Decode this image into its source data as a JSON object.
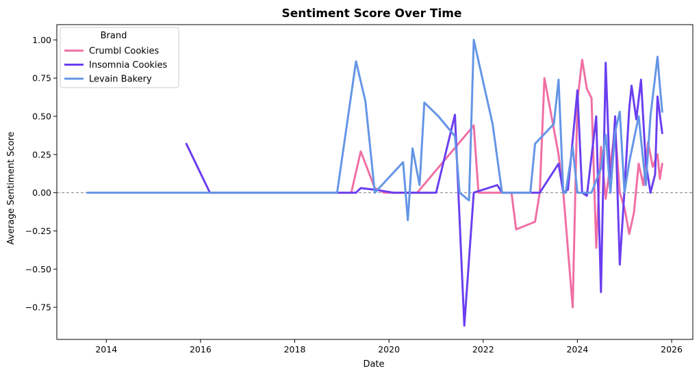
{
  "chart_data": {
    "type": "line",
    "title": "Sentiment Score Over Time",
    "xlabel": "Date",
    "ylabel": "Average Sentiment Score",
    "xlim": [
      2012.95,
      2026.45
    ],
    "ylim": [
      -0.96,
      1.1
    ],
    "x_ticks": [
      2014,
      2016,
      2018,
      2020,
      2022,
      2024,
      2026
    ],
    "x_tick_labels": [
      "2014",
      "2016",
      "2018",
      "2020",
      "2022",
      "2024",
      "2026"
    ],
    "y_ticks": [
      -0.75,
      -0.5,
      -0.25,
      0.0,
      0.25,
      0.5,
      0.75,
      1.0
    ],
    "y_tick_labels": [
      "−0.75",
      "−0.50",
      "−0.25",
      "0.00",
      "0.25",
      "0.50",
      "0.75",
      "1.00"
    ],
    "reference_line": {
      "y": 0,
      "style": "dashed",
      "color": "#808080"
    },
    "grid": false,
    "legend": {
      "title": "Brand",
      "placement": "top-left"
    },
    "series": [
      {
        "name": "Crumbl Cookies",
        "color": "#f06fa4",
        "points": [
          [
            2019.2,
            0.0
          ],
          [
            2019.4,
            0.27
          ],
          [
            2019.7,
            0.03
          ],
          [
            2019.9,
            0.0
          ],
          [
            2020.6,
            0.0
          ],
          [
            2021.8,
            0.44
          ],
          [
            2021.9,
            0.0
          ],
          [
            2022.6,
            0.0
          ],
          [
            2022.7,
            -0.24
          ],
          [
            2023.1,
            -0.19
          ],
          [
            2023.2,
            0.0
          ],
          [
            2023.3,
            0.75
          ],
          [
            2023.6,
            0.25
          ],
          [
            2023.7,
            0.0
          ],
          [
            2023.9,
            -0.75
          ],
          [
            2024.0,
            0.6
          ],
          [
            2024.1,
            0.87
          ],
          [
            2024.2,
            0.68
          ],
          [
            2024.3,
            0.62
          ],
          [
            2024.4,
            -0.36
          ],
          [
            2024.5,
            0.3
          ],
          [
            2024.6,
            -0.04
          ],
          [
            2024.8,
            0.42
          ],
          [
            2024.9,
            0.0
          ],
          [
            2025.0,
            -0.1
          ],
          [
            2025.1,
            -0.27
          ],
          [
            2025.2,
            -0.13
          ],
          [
            2025.3,
            0.19
          ],
          [
            2025.4,
            0.05
          ],
          [
            2025.5,
            0.33
          ],
          [
            2025.6,
            0.17
          ],
          [
            2025.7,
            0.25
          ],
          [
            2025.75,
            0.09
          ],
          [
            2025.8,
            0.19
          ]
        ]
      },
      {
        "name": "Insomnia Cookies",
        "color": "#6a3ef0",
        "points": [
          [
            2015.7,
            0.32
          ],
          [
            2016.2,
            0.0
          ],
          [
            2019.3,
            0.0
          ],
          [
            2019.4,
            0.03
          ],
          [
            2019.7,
            0.02
          ],
          [
            2020.1,
            0.0
          ],
          [
            2021.0,
            0.0
          ],
          [
            2021.4,
            0.51
          ],
          [
            2021.6,
            -0.87
          ],
          [
            2021.8,
            0.0
          ],
          [
            2022.3,
            0.05
          ],
          [
            2022.4,
            0.0
          ],
          [
            2023.2,
            0.0
          ],
          [
            2023.6,
            0.19
          ],
          [
            2023.7,
            0.0
          ],
          [
            2023.8,
            0.02
          ],
          [
            2024.0,
            0.67
          ],
          [
            2024.1,
            0.0
          ],
          [
            2024.2,
            -0.02
          ],
          [
            2024.4,
            0.5
          ],
          [
            2024.5,
            -0.65
          ],
          [
            2024.6,
            0.85
          ],
          [
            2024.7,
            0.0
          ],
          [
            2024.8,
            0.5
          ],
          [
            2024.9,
            -0.47
          ],
          [
            2025.0,
            0.02
          ],
          [
            2025.1,
            0.55
          ],
          [
            2025.15,
            0.7
          ],
          [
            2025.25,
            0.48
          ],
          [
            2025.35,
            0.74
          ],
          [
            2025.45,
            0.2
          ],
          [
            2025.55,
            0.0
          ],
          [
            2025.65,
            0.12
          ],
          [
            2025.7,
            0.63
          ],
          [
            2025.8,
            0.39
          ]
        ]
      },
      {
        "name": "Levain Bakery",
        "color": "#6495e6",
        "points": [
          [
            2013.6,
            0.0
          ],
          [
            2018.9,
            0.0
          ],
          [
            2019.3,
            0.86
          ],
          [
            2019.5,
            0.6
          ],
          [
            2019.7,
            0.0
          ],
          [
            2020.3,
            0.2
          ],
          [
            2020.4,
            -0.18
          ],
          [
            2020.5,
            0.29
          ],
          [
            2020.65,
            0.05
          ],
          [
            2020.75,
            0.59
          ],
          [
            2021.05,
            0.5
          ],
          [
            2021.4,
            0.37
          ],
          [
            2021.5,
            0.0
          ],
          [
            2021.7,
            -0.05
          ],
          [
            2021.8,
            1.0
          ],
          [
            2022.2,
            0.45
          ],
          [
            2022.4,
            0.0
          ],
          [
            2023.0,
            0.0
          ],
          [
            2023.1,
            0.32
          ],
          [
            2023.5,
            0.45
          ],
          [
            2023.6,
            0.74
          ],
          [
            2023.7,
            0.0
          ],
          [
            2023.75,
            0.0
          ],
          [
            2023.9,
            0.3
          ],
          [
            2024.0,
            0.0
          ],
          [
            2024.3,
            0.0
          ],
          [
            2024.5,
            0.16
          ],
          [
            2024.6,
            0.38
          ],
          [
            2024.7,
            0.0
          ],
          [
            2024.8,
            0.4
          ],
          [
            2024.9,
            0.53
          ],
          [
            2025.0,
            0.0
          ],
          [
            2025.1,
            0.2
          ],
          [
            2025.3,
            0.5
          ],
          [
            2025.45,
            0.05
          ],
          [
            2025.55,
            0.5
          ],
          [
            2025.7,
            0.89
          ],
          [
            2025.75,
            0.7
          ],
          [
            2025.8,
            0.53
          ]
        ]
      }
    ]
  }
}
